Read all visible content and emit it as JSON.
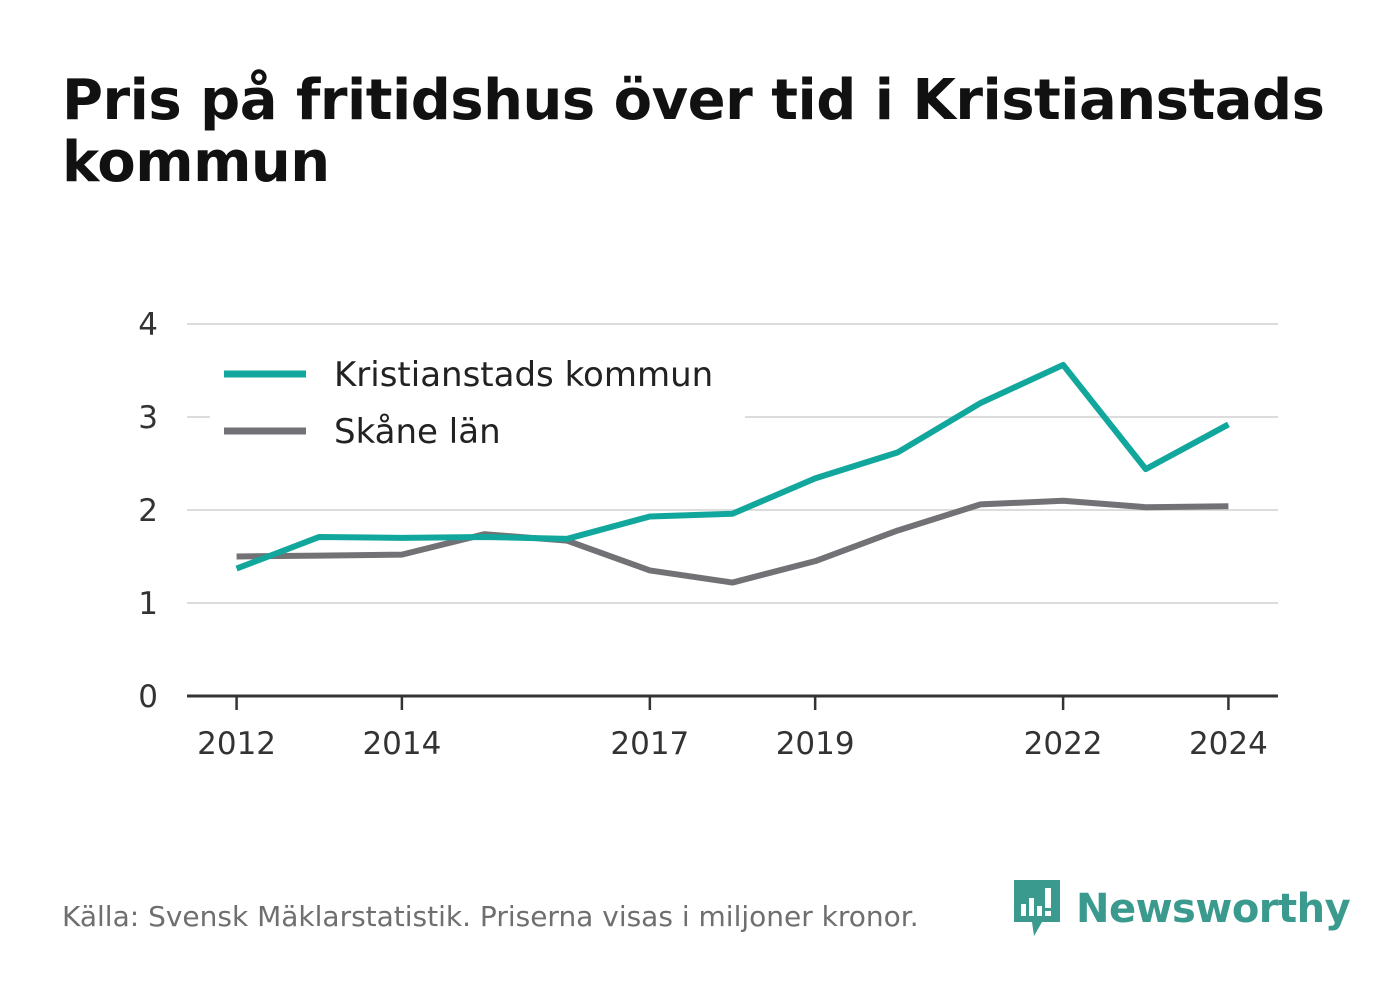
{
  "title": "Pris på fritidshus över tid i Kristianstads kommun",
  "footer": {
    "source": "Källa: Svensk Mäklarstatistik. Priserna visas i miljoner kronor."
  },
  "brand": {
    "name": "Newsworthy",
    "icon": "newsworthy-logo-icon",
    "color": "#3a9a8e"
  },
  "chart_data": {
    "type": "line",
    "title": "Pris på fritidshus över tid i Kristianstads kommun",
    "xlabel": "",
    "ylabel": "",
    "x": [
      2012,
      2013,
      2014,
      2015,
      2016,
      2017,
      2018,
      2019,
      2020,
      2021,
      2022,
      2023,
      2024
    ],
    "x_tick_labels": [
      "2012",
      "2014",
      "2017",
      "2019",
      "2022",
      "2024"
    ],
    "x_ticks": [
      2012,
      2014,
      2017,
      2019,
      2022,
      2024
    ],
    "xlim": [
      2011.4,
      2024.6
    ],
    "ylim": [
      0,
      4
    ],
    "y_ticks": [
      0,
      1,
      2,
      3,
      4
    ],
    "y_tick_labels": [
      "0",
      "1",
      "2",
      "3",
      "4"
    ],
    "grid": true,
    "legend": "top-left",
    "series": [
      {
        "name": "Kristianstads kommun",
        "color": "#12a79c",
        "values": [
          1.37,
          1.71,
          1.7,
          1.71,
          1.69,
          1.93,
          1.96,
          2.34,
          2.62,
          3.15,
          3.56,
          2.44,
          2.92
        ]
      },
      {
        "name": "Skåne län",
        "color": "#727175",
        "values": [
          1.5,
          1.51,
          1.52,
          1.74,
          1.67,
          1.35,
          1.22,
          1.45,
          1.78,
          2.06,
          2.1,
          2.03,
          2.04
        ]
      }
    ]
  }
}
